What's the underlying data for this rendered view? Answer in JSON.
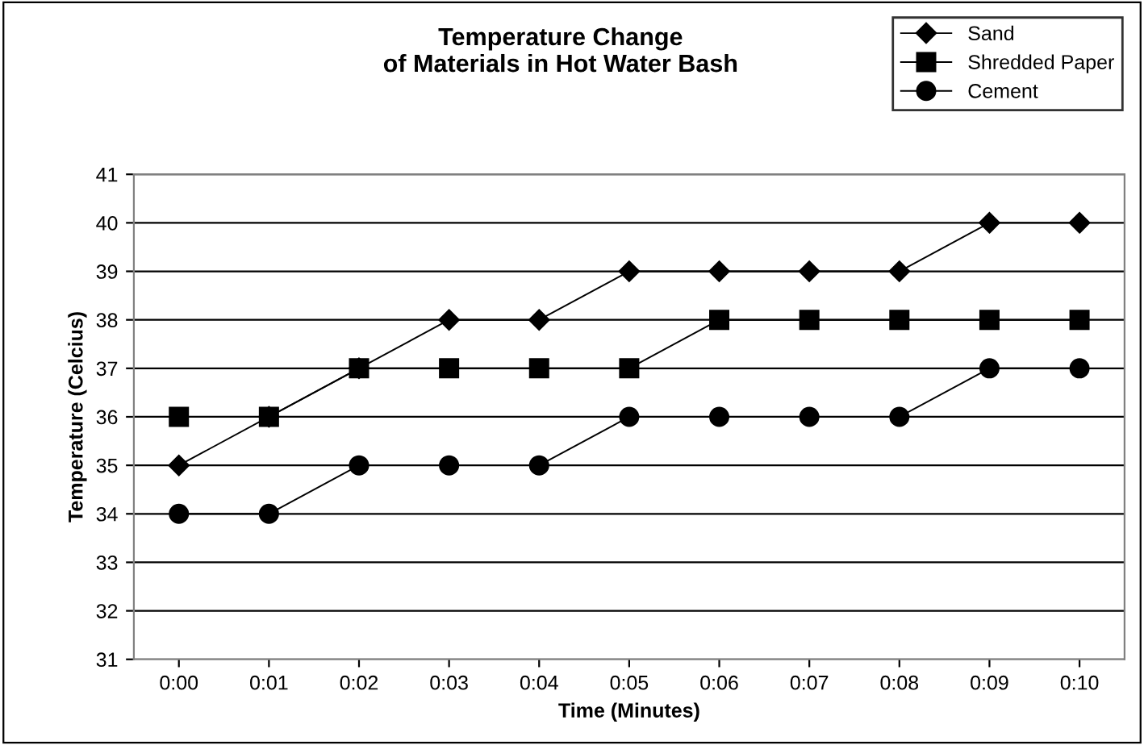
{
  "chart_data": {
    "type": "line",
    "title": "Temperature Change\nof Materials in Hot Water Bash",
    "xlabel": "Time (Minutes)",
    "ylabel": "Temperature (Celcius)",
    "categories": [
      "0:00",
      "0:01",
      "0:02",
      "0:03",
      "0:04",
      "0:05",
      "0:06",
      "0:07",
      "0:08",
      "0:09",
      "0:10"
    ],
    "series": [
      {
        "name": "Sand",
        "color": "#000000",
        "marker": "diamond",
        "values": [
          35,
          36,
          37,
          38,
          38,
          39,
          39,
          39,
          39,
          40,
          40
        ]
      },
      {
        "name": "Shredded Paper",
        "color": "#000000",
        "marker": "square",
        "values": [
          36,
          36,
          37,
          37,
          37,
          37,
          38,
          38,
          38,
          38,
          38
        ]
      },
      {
        "name": "Cement",
        "color": "#000000",
        "marker": "circle",
        "values": [
          34,
          34,
          35,
          35,
          35,
          36,
          36,
          36,
          36,
          37,
          37
        ]
      }
    ],
    "ylim": [
      31,
      41
    ],
    "yticks": [
      31,
      32,
      33,
      34,
      35,
      36,
      37,
      38,
      39,
      40,
      41
    ],
    "grid": "y",
    "legend": "top right",
    "line_style": "solid"
  }
}
